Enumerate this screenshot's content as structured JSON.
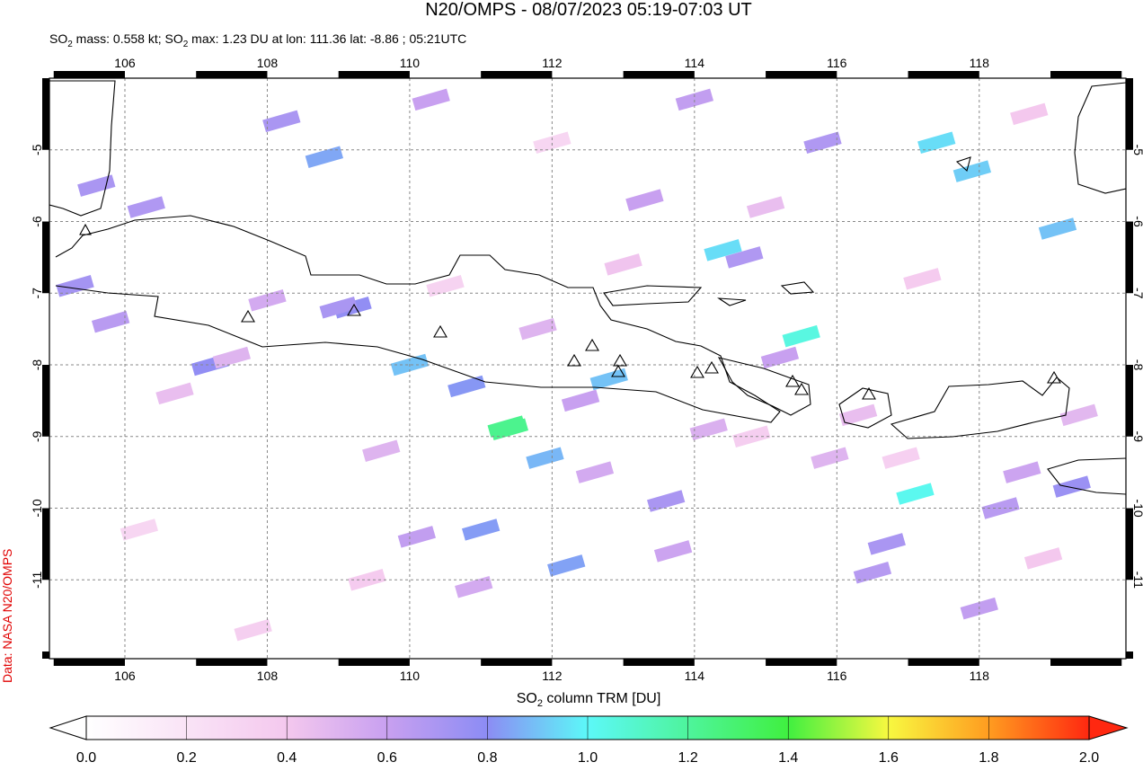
{
  "chart_data": {
    "type": "map",
    "title": "N20/OMPS - 08/07/2023 05:19-07:03 UT",
    "subtitle": [
      "SO",
      "2",
      " mass: 0.558 kt; SO",
      "2",
      " max: 1.23 DU at lon: 111.36 lat: -8.86 ; 05:21UTC"
    ],
    "side_label": "Data: NASA N20/OMPS",
    "xlim": [
      104.94,
      120.06
    ],
    "ylim": [
      -12.1,
      -4.0
    ],
    "xticks": [
      106,
      108,
      110,
      112,
      114,
      116,
      118
    ],
    "yticks": [
      -5,
      -6,
      -7,
      -8,
      -9,
      -10,
      -11
    ],
    "grid": true,
    "lon": [
      105.3,
      105.8,
      106.3,
      107.2,
      107.5,
      108.0,
      108.8,
      109.2,
      109.0,
      110.0,
      110.3,
      110.8,
      111.4,
      111.36,
      111.0,
      111.9,
      112.2,
      112.6,
      112.8,
      113.3,
      113.6,
      114.0,
      114.4,
      114.7,
      115.2,
      115.5,
      115.8,
      116.3,
      116.7,
      117.1,
      117.4,
      117.9,
      118.3,
      118.6,
      119.1,
      119.3,
      105.6,
      106.7,
      108.2,
      109.6,
      110.1,
      110.9,
      111.8,
      112.4,
      113.0,
      113.7,
      114.2,
      115.0,
      115.9,
      116.5,
      117.2,
      118.0,
      118.7,
      119.4,
      106.2,
      107.8,
      109.4,
      110.5,
      112.0,
      114.8,
      116.9,
      118.9
    ],
    "lat": [
      -6.9,
      -7.4,
      -5.8,
      -8.0,
      -7.9,
      -7.1,
      -5.1,
      -7.2,
      -7.2,
      -8.0,
      -4.3,
      -8.3,
      -8.9,
      -8.86,
      -10.3,
      -9.3,
      -10.8,
      -9.5,
      -8.2,
      -5.7,
      -9.9,
      -4.3,
      -6.4,
      -6.5,
      -7.9,
      -7.6,
      -4.9,
      -8.7,
      -10.5,
      -9.8,
      -4.9,
      -5.3,
      -10.0,
      -9.5,
      -6.1,
      -9.7,
      -5.5,
      -8.4,
      -4.6,
      -9.2,
      -10.4,
      -11.1,
      -7.5,
      -8.5,
      -6.6,
      -10.6,
      -8.9,
      -5.8,
      -9.3,
      -10.9,
      -6.8,
      -11.4,
      -4.5,
      -8.7,
      -10.3,
      -11.7,
      -11.0,
      -6.9,
      -4.9,
      -9.0,
      -9.3,
      -10.7
    ],
    "values": [
      0.72,
      0.65,
      0.68,
      0.78,
      0.5,
      0.55,
      0.85,
      0.78,
      0.7,
      0.9,
      0.6,
      0.82,
      1.23,
      1.23,
      0.83,
      0.88,
      0.84,
      0.55,
      0.9,
      0.6,
      0.7,
      0.62,
      0.95,
      0.68,
      0.6,
      1.05,
      0.68,
      0.45,
      0.7,
      1.02,
      0.95,
      0.92,
      0.65,
      0.58,
      0.9,
      0.75,
      0.7,
      0.45,
      0.7,
      0.5,
      0.62,
      0.55,
      0.5,
      0.6,
      0.42,
      0.58,
      0.52,
      0.45,
      0.5,
      0.66,
      0.38,
      0.62,
      0.4,
      0.48,
      0.3,
      0.35,
      0.38,
      0.32,
      0.3,
      0.36,
      0.34,
      0.4
    ],
    "colorbar": {
      "label": [
        "SO",
        "2",
        " column TRM [DU]"
      ],
      "lim": [
        0,
        2
      ],
      "ticks": [
        {
          "value": 0,
          "label": "0.0"
        },
        0.2,
        0.4,
        0.6,
        0.8,
        {
          "value": 1,
          "label": "1.0"
        },
        1.2,
        1.4,
        1.6,
        1.8,
        {
          "value": 2,
          "label": "2.0"
        }
      ]
    }
  }
}
